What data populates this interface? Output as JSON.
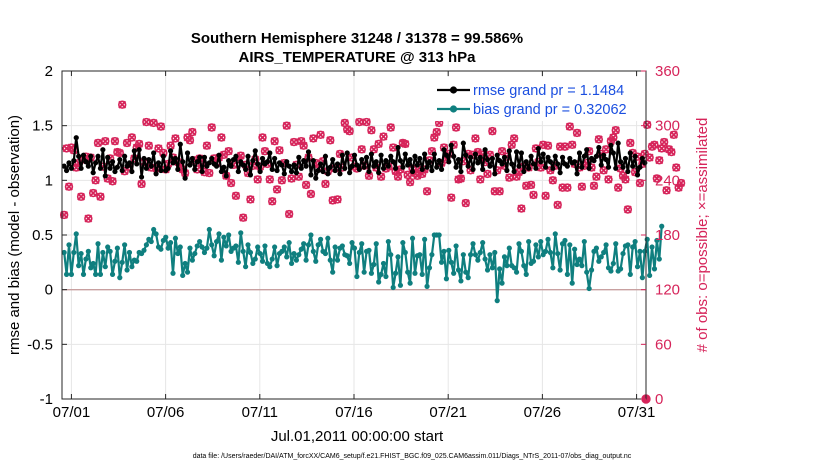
{
  "chart_data": {
    "type": "line",
    "title_line1": "Southern Hemisphere 31248 / 31378 = 99.586%",
    "title_line2": "AIRS_TEMPERATURE @ 313 hPa",
    "xlabel": "Jul.01,2011 00:00:00 start",
    "ylabel_left": "rmse and bias (model - observation)",
    "ylabel_right": "# of obs: o=possible; ×=assimilated",
    "footnote": "data file: /Users/raeder/DAI/ATM_forcXX/CAM6_setup/f.e21.FHIST_BGC.f09_025.CAM6assim.011/Diags_NTrS_2011-07/obs_diag_output.nc",
    "xlim": [
      0.5,
      31.5
    ],
    "ylim_left": [
      -1,
      2
    ],
    "ylim_right": [
      0,
      360
    ],
    "x_ticks": [
      1,
      6,
      11,
      16,
      21,
      26,
      31
    ],
    "x_tick_labels": [
      "07/01",
      "07/06",
      "07/11",
      "07/16",
      "07/21",
      "07/26",
      "07/31"
    ],
    "y_ticks_left": [
      -1,
      -0.5,
      0,
      0.5,
      1,
      1.5,
      2
    ],
    "y_tick_labels_left": [
      "-1",
      "-0.5",
      "0",
      "0.5",
      "1",
      "1.5",
      "2"
    ],
    "y_ticks_right": [
      0,
      60,
      120,
      180,
      240,
      300,
      360
    ],
    "y_tick_labels_right": [
      "0",
      "60",
      "120",
      "180",
      "240",
      "300",
      "360"
    ],
    "grid": true,
    "legend_position": "top-right",
    "colors": {
      "rmse": "#000000",
      "bias": "#0f7f7f",
      "obs": "#d6245a",
      "zero_line": "#c8a0a0",
      "grid": "#e6e6e6",
      "legend_text": "#1b4fe0"
    },
    "series": [
      {
        "name": "rmse",
        "label": "rmse grand pr = 1.1484",
        "axis": "left",
        "values": [
          1.13,
          1.09,
          1.16,
          1.11,
          1.18,
          1.39,
          1.22,
          1.11,
          1.23,
          1.17,
          1.13,
          1.22,
          1.07,
          1.16,
          1.22,
          1.11,
          1.28,
          1.04,
          1.21,
          1.11,
          1.17,
          1.08,
          1.12,
          1.19,
          1.09,
          1.22,
          1.13,
          1.16,
          1.08,
          1.27,
          1.15,
          1.28,
          1.03,
          1.2,
          1.11,
          1.19,
          1.13,
          1.25,
          1.06,
          1.16,
          1.09,
          1.22,
          1.09,
          1.11,
          1.27,
          1.16,
          1.2,
          1.1,
          1.33,
          1.17,
          1.02,
          1.25,
          1.14,
          1.2,
          1.1,
          1.17,
          1.21,
          1.08,
          1.21,
          1.13,
          1.16,
          1.2,
          1.15,
          1.13,
          1.23,
          1.08,
          1.12,
          1.04,
          1.18,
          1.13,
          1.19,
          1.22,
          1.08,
          1.17,
          1.14,
          1.1,
          1.22,
          1.05,
          1.18,
          1.27,
          1.15,
          1.08,
          1.2,
          1.15,
          1.17,
          1.25,
          1.1,
          1.2,
          1.09,
          1.16,
          1.14,
          1.06,
          1.17,
          1.13,
          1.08,
          1.14,
          1.07,
          1.21,
          1.11,
          1.18,
          1.13,
          1.26,
          1.05,
          1.18,
          1.02,
          1.09,
          1.15,
          1.08,
          1.22,
          1.06,
          1.12,
          1.19,
          1.09,
          1.15,
          1.06,
          1.23,
          1.11,
          1.25,
          1.07,
          1.13,
          1.23,
          1.14,
          1.1,
          1.19,
          1.12,
          1.21,
          1.08,
          1.24,
          1.13,
          1.17,
          1.07,
          1.23,
          1.11,
          1.18,
          1.13,
          1.22,
          1.17,
          1.11,
          1.3,
          1.18,
          1.12,
          1.24,
          1.14,
          1.19,
          1.08,
          1.22,
          1.14,
          1.2,
          1.1,
          1.24,
          1.12,
          1.17,
          1.09,
          1.24,
          1.12,
          1.18,
          1.1,
          1.28,
          1.23,
          1.17,
          1.32,
          1.22,
          1.12,
          1.19,
          1.08,
          1.34,
          1.23,
          1.13,
          1.21,
          1.1,
          1.24,
          1.16,
          1.21,
          1.1,
          1.28,
          1.19,
          1.13,
          1.2,
          1.06,
          1.23,
          1.18,
          1.15,
          1.21,
          1.09,
          1.27,
          1.15,
          1.08,
          1.26,
          1.13,
          1.25,
          1.08,
          1.17,
          1.11,
          1.22,
          1.15,
          1.11,
          1.29,
          1.17,
          1.24,
          1.12,
          1.21,
          1.17,
          1.11,
          1.22,
          1.15,
          1.07,
          1.21,
          1.15,
          1.13,
          1.2,
          1.16,
          1.17,
          1.06,
          1.25,
          1.12,
          1.22,
          1.28,
          1.11,
          1.2,
          1.18,
          1.22,
          1.3,
          1.14,
          1.23,
          1.19,
          1.12,
          1.32,
          1.25,
          1.11,
          1.34,
          1.17,
          1.12,
          1.2,
          1.08,
          1.25,
          1.13,
          1.22,
          1.05,
          1.12,
          1.2,
          1.16
        ]
      },
      {
        "name": "bias",
        "label": "bias grand pr = 0.32062",
        "axis": "left",
        "values": [
          0.34,
          0.14,
          0.41,
          0.14,
          0.34,
          0.51,
          0.22,
          0.33,
          0.14,
          0.28,
          0.35,
          0.2,
          0.24,
          0.14,
          0.42,
          0.14,
          0.34,
          0.21,
          0.39,
          0.35,
          0.14,
          0.26,
          0.38,
          0.11,
          0.25,
          0.41,
          0.18,
          0.34,
          0.21,
          0.27,
          0.26,
          0.34,
          0.33,
          0.36,
          0.41,
          0.46,
          0.44,
          0.55,
          0.51,
          0.39,
          0.37,
          0.45,
          0.48,
          0.38,
          0.43,
          0.15,
          0.47,
          0.33,
          0.39,
          0.13,
          0.24,
          0.16,
          0.38,
          0.27,
          0.33,
          0.4,
          0.44,
          0.39,
          0.34,
          0.38,
          0.55,
          0.41,
          0.31,
          0.44,
          0.51,
          0.27,
          0.48,
          0.4,
          0.5,
          0.35,
          0.38,
          0.4,
          0.25,
          0.52,
          0.35,
          0.21,
          0.41,
          0.34,
          0.24,
          0.28,
          0.39,
          0.33,
          0.26,
          0.4,
          0.24,
          0.21,
          0.28,
          0.39,
          0.22,
          0.33,
          0.35,
          0.39,
          0.3,
          0.43,
          0.24,
          0.33,
          0.27,
          0.32,
          0.37,
          0.42,
          0.27,
          0.41,
          0.5,
          0.35,
          0.26,
          0.41,
          0.46,
          0.35,
          0.33,
          0.47,
          0.27,
          0.16,
          0.39,
          0.27,
          0.38,
          0.4,
          0.32,
          0.31,
          0.24,
          0.43,
          0.38,
          0.12,
          0.34,
          0.42,
          0.16,
          0.35,
          0.36,
          0.15,
          0.23,
          0.42,
          0.07,
          0.14,
          0.24,
          0.12,
          0.44,
          0.32,
          0.02,
          0.15,
          0.3,
          0.04,
          0.43,
          0.34,
          0.16,
          0.06,
          0.47,
          0.15,
          0.31,
          0.32,
          0.14,
          0.46,
          0.03,
          0.2,
          0.32,
          0.5,
          0.5,
          0.5,
          0.25,
          0.35,
          0.1,
          0.36,
          0.25,
          0.15,
          0.4,
          0.18,
          0.08,
          0.32,
          0.16,
          0.11,
          0.32,
          0.42,
          0.32,
          0.27,
          0.34,
          0.43,
          0.28,
          0.18,
          0.32,
          0.2,
          0.34,
          -0.1,
          0.19,
          0.06,
          0.3,
          0.22,
          0.38,
          0.22,
          0.2,
          0.16,
          0.42,
          0.35,
          0.22,
          0.14,
          0.44,
          0.24,
          0.26,
          0.41,
          0.3,
          0.44,
          0.32,
          0.35,
          0.46,
          0.34,
          0.2,
          0.51,
          0.33,
          0.18,
          0.42,
          0.45,
          0.14,
          0.41,
          0.06,
          0.37,
          0.23,
          0.28,
          0.22,
          0.44,
          0.16,
          0.01,
          0.18,
          0.35,
          0.38,
          0.26,
          0.3,
          0.34,
          0.41,
          0.2,
          0.17,
          0.24,
          0.42,
          0.17,
          0.19,
          0.33,
          0.4,
          0.41,
          0.14,
          0.39,
          0.44,
          0.21,
          0.35,
          0.11,
          0.35,
          0.46,
          0.13,
          0.39,
          0.19,
          0.45,
          0.28,
          0.58
        ]
      },
      {
        "name": "obs_possible",
        "label": "o=possible",
        "axis": "right",
        "marker": "o",
        "values": [
          202,
          275,
          233,
          276,
          273,
          254,
          259,
          222,
          263,
          266,
          198,
          265,
          226,
          240,
          281,
          222,
          255,
          283,
          242,
          264,
          239,
          283,
          271,
          270,
          323,
          250,
          281,
          255,
          287,
          264,
          276,
          280,
          236,
          260,
          304,
          278,
          254,
          303,
          253,
          275,
          299,
          270,
          252,
          258,
          278,
          265,
          286,
          260,
          255,
          252,
          248,
          287,
          284,
          293,
          262,
          252,
          264,
          258,
          249,
          278,
          248,
          298,
          264,
          259,
          265,
          287,
          268,
          245,
          272,
          237,
          257,
          223,
          263,
          267,
          199,
          257,
          248,
          219,
          256,
          263,
          241,
          255,
          287,
          272,
          258,
          241,
          217,
          283,
          230,
          273,
          240,
          259,
          300,
          203,
          242,
          282,
          257,
          244,
          283,
          278,
          235,
          265,
          225,
          286,
          259,
          253,
          290,
          261,
          236,
          250,
          284,
          218,
          253,
          219,
          269,
          254,
          303,
          296,
          294,
          265,
          255,
          253,
          304,
          274,
          256,
          304,
          245,
          295,
          274,
          254,
          280,
          244,
          288,
          253,
          255,
          298,
          276,
          250,
          244,
          252,
          281,
          280,
          246,
          238,
          253,
          248,
          245,
          254,
          247,
          252,
          228,
          262,
          272,
          287,
          293,
          303,
          259,
          276,
          263,
          269,
          221,
          279,
          298,
          241,
          242,
          261,
          215,
          269,
          251,
          268,
          286,
          271,
          241,
          268,
          260,
          247,
          268,
          294,
          228,
          251,
          228,
          272,
          256,
          266,
          243,
          279,
          286,
          244,
          249,
          209,
          255,
          234,
          254,
          235,
          224,
          275,
          260,
          254,
          279,
          223,
          278,
          251,
          240,
          256,
          213,
          277,
          232,
          277,
          232,
          299,
          279,
          258,
          292,
          254,
          233,
          256,
          259,
          272,
          254,
          234,
          244,
          285,
          269,
          251,
          274,
          241,
          283,
          287,
          295,
          232,
          253,
          245,
          241,
          208,
          281,
          270,
          249,
          266,
          237,
          258,
          269,
          301,
          265,
          277,
          279,
          242,
          262,
          275,
          282,
          229,
          274,
          271,
          290,
          254,
          232,
          237
        ]
      },
      {
        "name": "obs_assimilated",
        "label": "×=assimilated",
        "axis": "right",
        "marker": "x",
        "values": [
          202,
          275,
          233,
          276,
          273,
          254,
          259,
          222,
          263,
          266,
          198,
          265,
          226,
          240,
          281,
          222,
          255,
          283,
          242,
          264,
          239,
          283,
          271,
          270,
          323,
          250,
          281,
          255,
          287,
          264,
          276,
          280,
          236,
          260,
          304,
          278,
          254,
          303,
          253,
          275,
          299,
          270,
          252,
          258,
          278,
          265,
          286,
          260,
          255,
          252,
          248,
          287,
          284,
          293,
          262,
          252,
          264,
          258,
          249,
          278,
          248,
          298,
          264,
          259,
          265,
          287,
          268,
          245,
          272,
          237,
          257,
          223,
          263,
          267,
          199,
          257,
          248,
          219,
          256,
          263,
          241,
          255,
          287,
          272,
          258,
          241,
          217,
          283,
          230,
          273,
          240,
          259,
          300,
          203,
          242,
          282,
          257,
          244,
          283,
          278,
          235,
          265,
          225,
          286,
          259,
          253,
          290,
          261,
          236,
          250,
          284,
          218,
          253,
          219,
          269,
          254,
          303,
          296,
          294,
          265,
          255,
          253,
          304,
          274,
          256,
          304,
          245,
          295,
          274,
          254,
          280,
          244,
          288,
          253,
          255,
          298,
          276,
          250,
          244,
          252,
          281,
          280,
          246,
          238,
          253,
          248,
          245,
          254,
          247,
          252,
          228,
          262,
          272,
          287,
          293,
          303,
          259,
          276,
          263,
          269,
          221,
          279,
          298,
          241,
          242,
          261,
          215,
          269,
          251,
          268,
          286,
          271,
          241,
          268,
          260,
          247,
          268,
          294,
          228,
          251,
          228,
          272,
          256,
          266,
          243,
          279,
          286,
          244,
          249,
          209,
          255,
          234,
          254,
          235,
          224,
          275,
          260,
          254,
          279,
          223,
          278,
          251,
          240,
          256,
          213,
          277,
          232,
          277,
          232,
          299,
          279,
          258,
          292,
          254,
          233,
          256,
          259,
          272,
          254,
          234,
          244,
          285,
          269,
          251,
          274,
          241,
          283,
          287,
          295,
          232,
          253,
          245,
          241,
          208,
          281,
          270,
          249,
          266,
          237,
          258,
          269,
          301,
          265,
          277,
          279,
          242,
          262,
          275,
          282,
          229,
          274,
          271,
          290,
          254,
          232,
          237
        ]
      }
    ],
    "end_point_possible": {
      "x": 31.5,
      "value": 0
    }
  }
}
